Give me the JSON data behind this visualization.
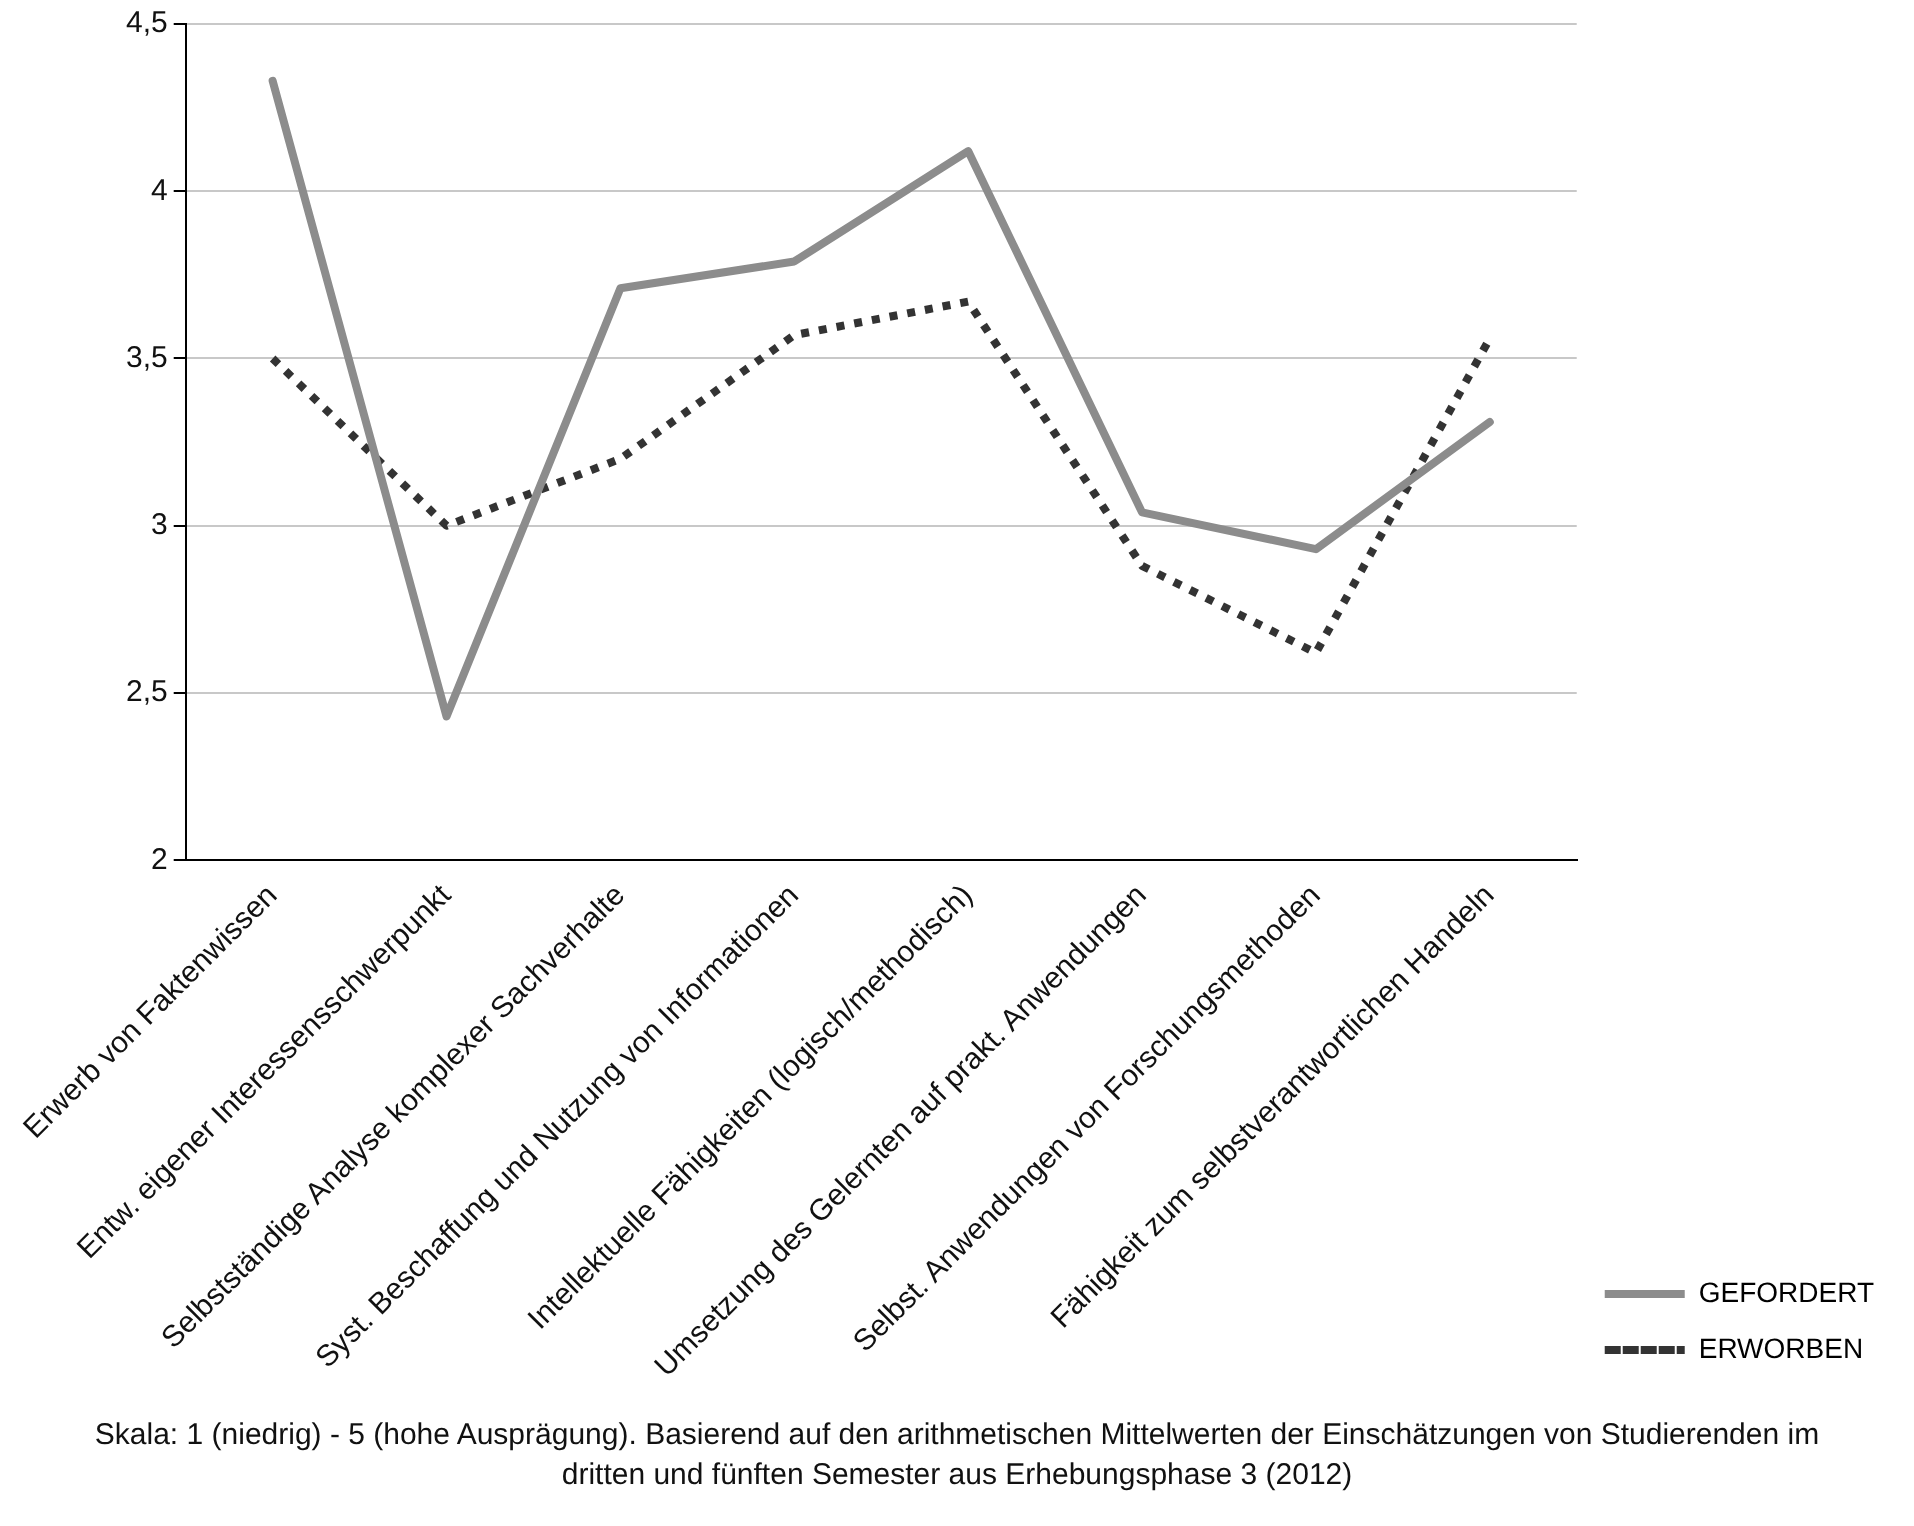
{
  "chart_data": {
    "type": "line",
    "categories": [
      "Erwerb von Faktenwissen",
      "Entw. eigener Interessensschwerpunkt",
      "Selbstständige Analyse komplexer Sachverhalte",
      "Syst. Beschaffung und Nutzung von Informationen",
      "Intellektuelle Fähigkeiten (logisch/methodisch)",
      "Umsetzung des Gelernten auf prakt. Anwendungen",
      "Selbst. Anwendungen von Forschungsmethoden",
      "Fähigkeit zum selbstverantwortlichen Handeln"
    ],
    "series": [
      {
        "name": "GEFORDERT",
        "color": "#8c8c8c",
        "line_style": "solid",
        "values": [
          4.33,
          2.43,
          3.71,
          3.79,
          4.12,
          3.04,
          2.93,
          3.31
        ]
      },
      {
        "name": "ERWORBEN",
        "color": "#333333",
        "line_style": "dotted",
        "values": [
          3.5,
          3.0,
          3.2,
          3.57,
          3.67,
          2.88,
          2.62,
          3.56
        ]
      }
    ],
    "ylim": [
      2,
      4.5
    ],
    "yticks": [
      2,
      {
        "value": 2.5,
        "label": "2,5"
      },
      3,
      {
        "value": 3.5,
        "label": "3,5"
      },
      4,
      {
        "value": 4.5,
        "label": "4,5"
      }
    ],
    "grid": "y",
    "legend": "bottom right",
    "marker": "none",
    "annotations": [
      "Skala: 1 (niedrig) - 5 (hohe Ausprägung). Basierend auf den arithmetischen Mittelwerten der Einschätzungen von Studierenden im dritten und fünften Semester aus Erhebungsphase 3 (2012)"
    ]
  }
}
